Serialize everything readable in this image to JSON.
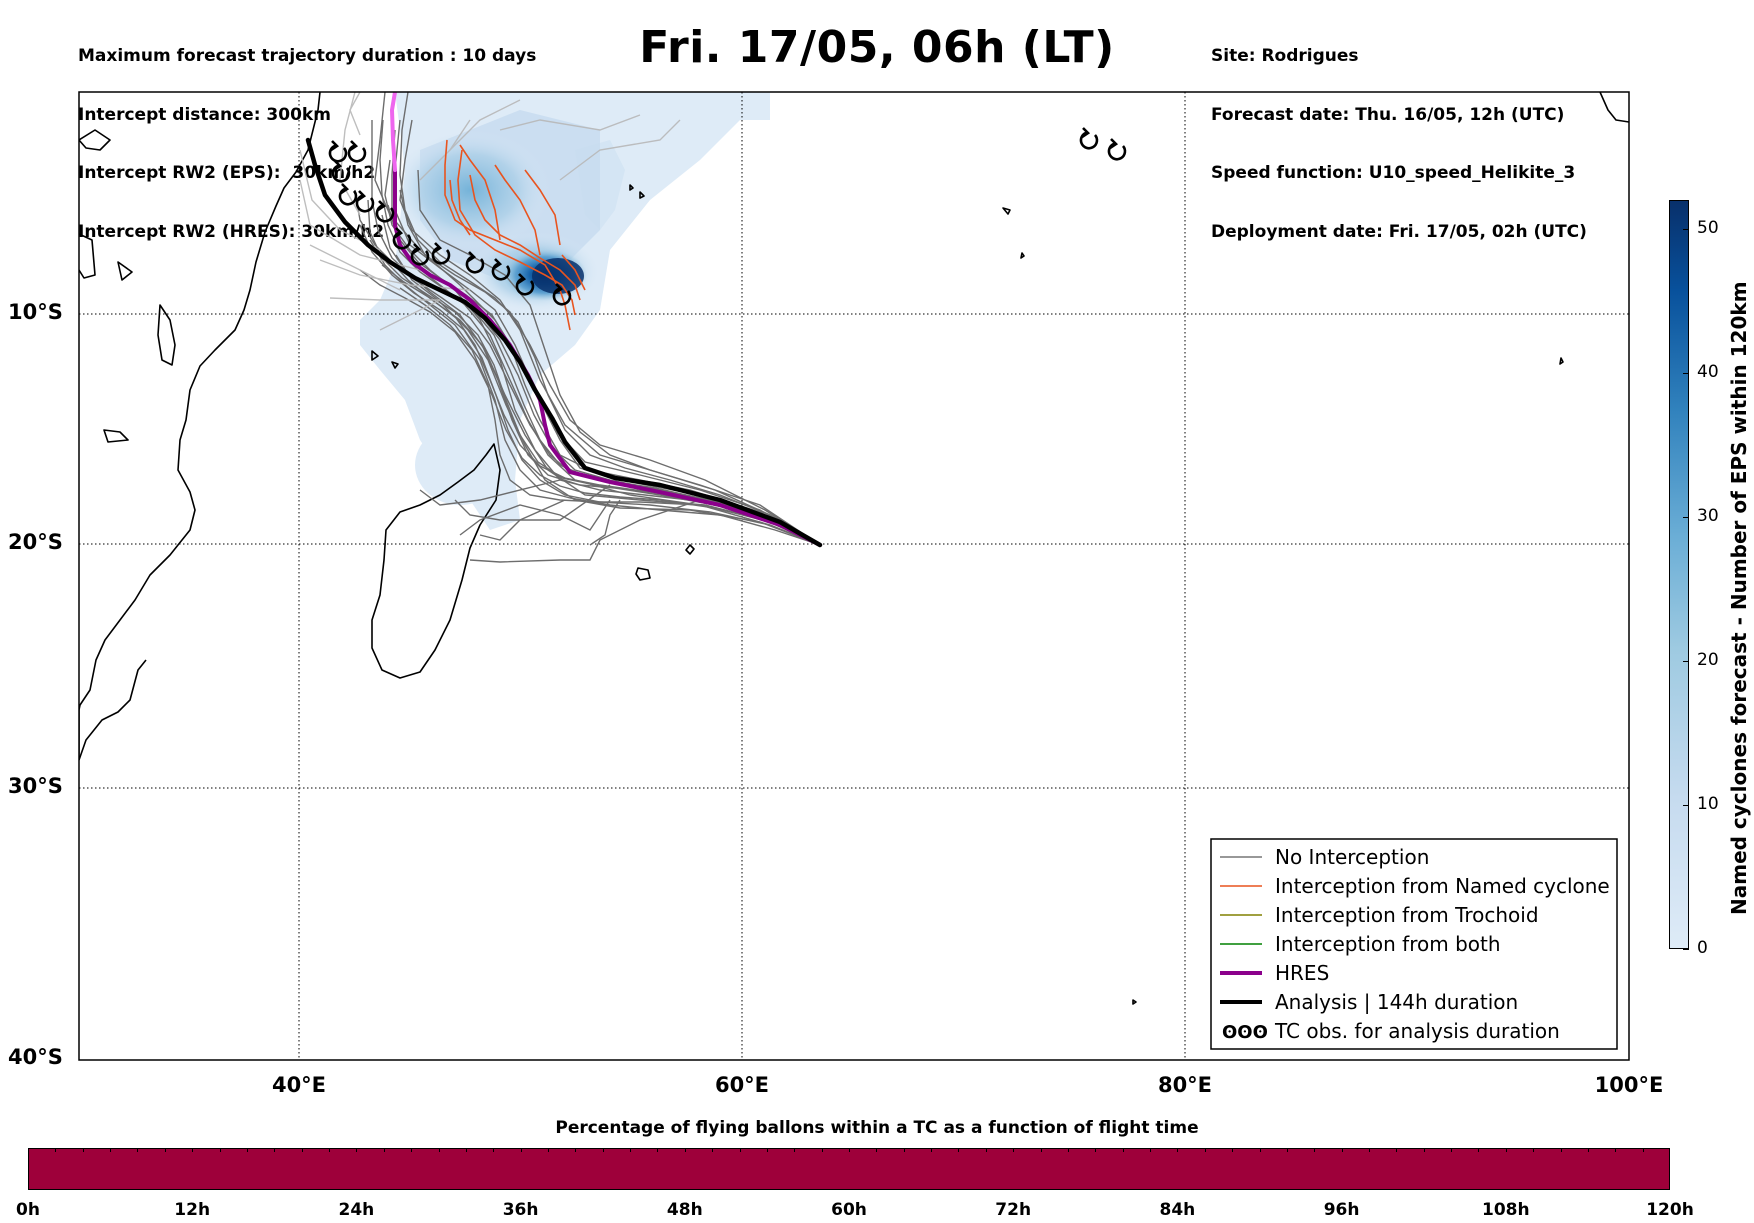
{
  "header_left": [
    "Maximum forecast trajectory duration : 10 days",
    "Intercept distance: 300km",
    "Intercept RW2 (EPS):  30km/h2",
    "Intercept RW2 (HRES): 30km/h2"
  ],
  "title": "Fri. 17/05, 06h (LT)",
  "header_right": [
    "Site: Rodrigues",
    "Forecast date: Thu. 16/05, 12h (UTC)",
    "Speed function: U10_speed_Helikite_3",
    "Deployment date: Fri. 17/05, 02h (UTC)"
  ],
  "map": {
    "lat_labels": [
      "10°S",
      "20°S",
      "30°S",
      "40°S"
    ],
    "lon_labels": [
      "40°E",
      "60°E",
      "80°E",
      "100°E"
    ],
    "lon_range": [
      30,
      100
    ],
    "lat_range": [
      -1,
      -40
    ],
    "hres_color": "#8b008b",
    "analysis_color": "#000000",
    "named_cyclone_color": "#e8541f",
    "no_interception_color": "#666666"
  },
  "legend": [
    {
      "label": "No Interception",
      "color": "#777777",
      "style": "thin"
    },
    {
      "label": "Interception from Named cyclone",
      "color": "#e8541f",
      "style": "thin"
    },
    {
      "label": "Interception from Trochoid",
      "color": "#808000",
      "style": "thin"
    },
    {
      "label": "Interception from both",
      "color": "#008000",
      "style": "thin"
    },
    {
      "label": "HRES",
      "color": "#8b008b",
      "style": "thick"
    },
    {
      "label": "Analysis | 144h duration",
      "color": "#000000",
      "style": "thick"
    },
    {
      "label": "TC obs. for analysis duration",
      "color": "#000000",
      "style": "symbol",
      "symbol": "ʘʘʘ"
    }
  ],
  "vertical_colorbar": {
    "label": "Named cyclones forecast - Number of EPS within 120km",
    "ticks": [
      "0",
      "10",
      "20",
      "30",
      "40",
      "50"
    ],
    "range": [
      0,
      52
    ],
    "color_low": "#deebf7",
    "color_high": "#08306b"
  },
  "horizontal_colorbar": {
    "title": "Percentage of flying ballons within a TC as a function of flight time",
    "ticks": [
      "0h",
      "12h",
      "24h",
      "36h",
      "48h",
      "60h",
      "72h",
      "84h",
      "96h",
      "108h",
      "120h"
    ],
    "fill_color": "#9e003a"
  }
}
